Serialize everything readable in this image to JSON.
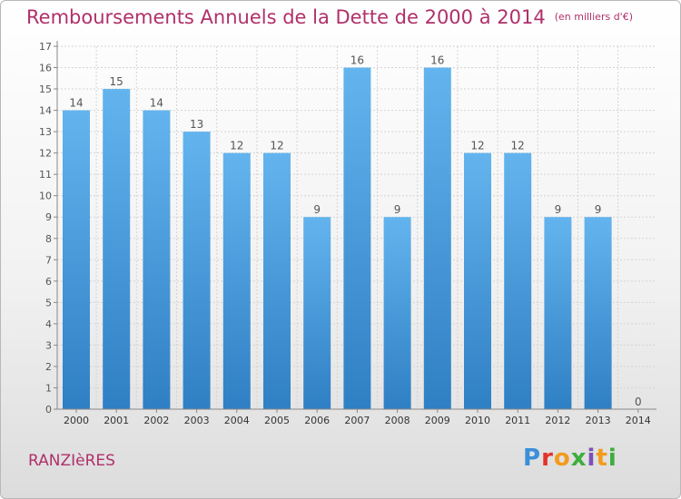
{
  "header": {
    "title": "Remboursements Annuels de la Dette de 2000 à 2014",
    "unit": "(en milliers d'€)"
  },
  "footer": {
    "commune": "RANZIèRES",
    "logo_letters": [
      "P",
      "r",
      "o",
      "x",
      "i",
      "t",
      "i"
    ]
  },
  "colors": {
    "title": "#b0306a",
    "bar_top": "#63b4ee",
    "bar_bottom": "#2f7fc4"
  },
  "chart_data": {
    "type": "bar",
    "categories": [
      "2000",
      "2001",
      "2002",
      "2003",
      "2004",
      "2005",
      "2006",
      "2007",
      "2008",
      "2009",
      "2010",
      "2011",
      "2012",
      "2013",
      "2014"
    ],
    "values": [
      14,
      15,
      14,
      13,
      12,
      12,
      9,
      16,
      9,
      16,
      12,
      12,
      9,
      9,
      0
    ],
    "data_labels": [
      "14",
      "15",
      "14",
      "13",
      "12",
      "12",
      "9",
      "16",
      "9",
      "16",
      "12",
      "12",
      "9",
      "9",
      "0"
    ],
    "yticks": [
      "0",
      "1",
      "2",
      "3",
      "4",
      "5",
      "6",
      "7",
      "8",
      "9",
      "10",
      "11",
      "12",
      "13",
      "14",
      "15",
      "16",
      "17"
    ],
    "ylim": [
      0,
      17
    ],
    "grid": true,
    "legend": "none"
  }
}
